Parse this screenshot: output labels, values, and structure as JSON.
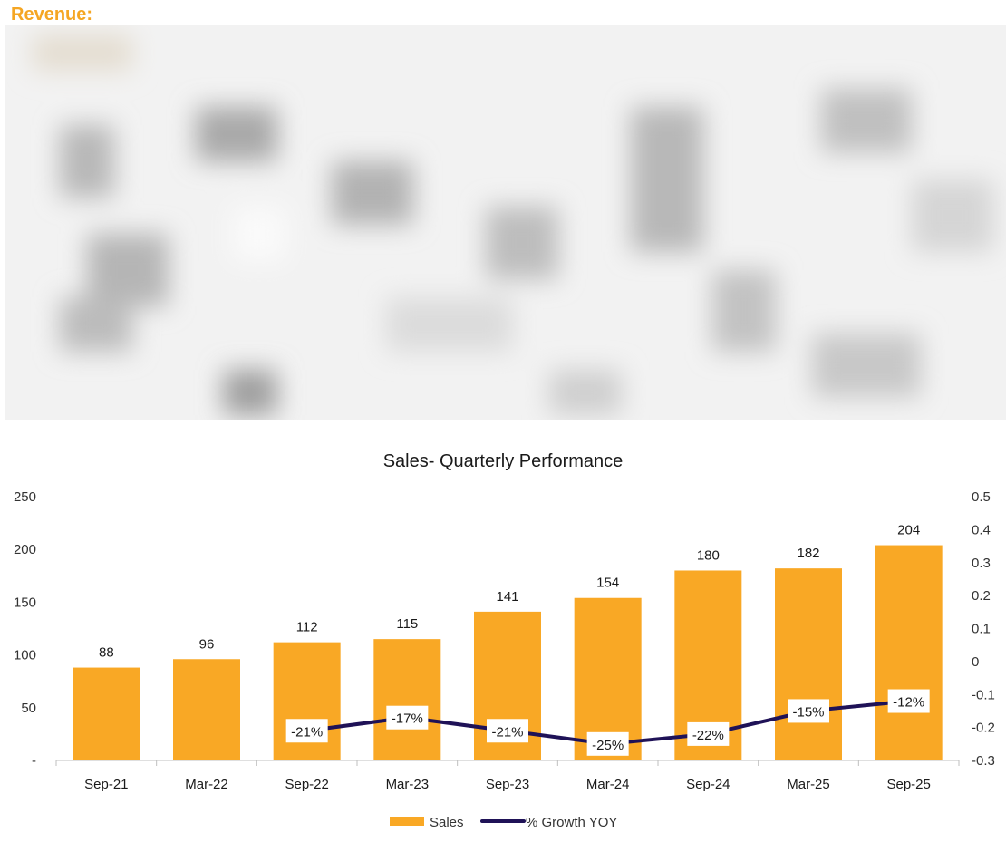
{
  "section": {
    "title": "Revenue:"
  },
  "chart_data": {
    "type": "bar",
    "title": "Sales- Quarterly Performance",
    "categories": [
      "Sep-21",
      "Mar-22",
      "Sep-22",
      "Mar-23",
      "Sep-23",
      "Mar-24",
      "Sep-24",
      "Mar-25",
      "Sep-25"
    ],
    "series": [
      {
        "name": "Sales",
        "type": "bar",
        "axis": "left",
        "color": "#f9a825",
        "values": [
          88,
          96,
          112,
          115,
          141,
          154,
          180,
          182,
          204
        ],
        "labels": [
          "88",
          "96",
          "112",
          "115",
          "141",
          "154",
          "180",
          "182",
          "204"
        ]
      },
      {
        "name": "% Growth YOY",
        "type": "line",
        "axis": "right",
        "color": "#1f1257",
        "values": [
          null,
          null,
          -0.21,
          -0.17,
          -0.21,
          -0.25,
          -0.22,
          -0.15,
          -0.12
        ],
        "labels": [
          null,
          null,
          "-21%",
          "-17%",
          "-21%",
          "-25%",
          "-22%",
          "-15%",
          "-12%"
        ]
      }
    ],
    "y_left": {
      "ylim": [
        0,
        250
      ],
      "ticks": [
        0,
        50,
        100,
        150,
        200,
        250
      ],
      "tick_labels": [
        "-",
        "50",
        "100",
        "150",
        "200",
        "250"
      ]
    },
    "y_right": {
      "ylim": [
        -0.3,
        0.5
      ],
      "ticks": [
        -0.3,
        -0.2,
        -0.1,
        0,
        0.1,
        0.2,
        0.3,
        0.4,
        0.5
      ],
      "tick_labels": [
        "-0.3",
        "-0.2",
        "-0.1",
        "0",
        "0.1",
        "0.2",
        "0.3",
        "0.4",
        "0.5"
      ]
    },
    "xlabel": "",
    "ylabel": "",
    "grid": false,
    "legend_position": "bottom-center"
  }
}
